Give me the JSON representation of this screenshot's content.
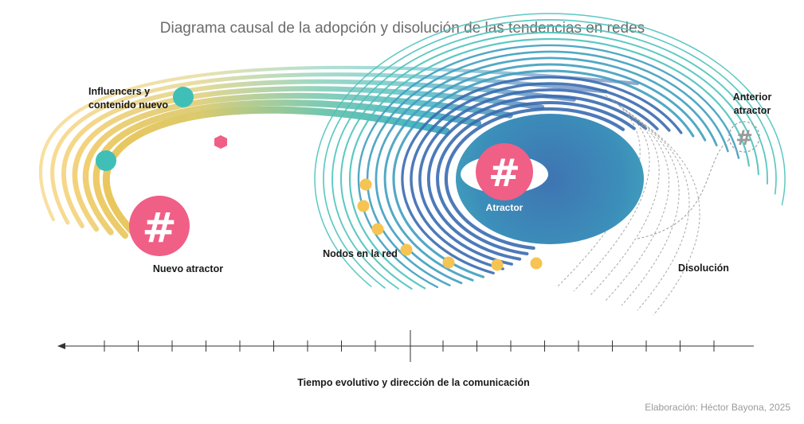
{
  "title": "Diagrama causal de la adopción y disolución de las tendencias en redes",
  "labels": {
    "influencers_line1": "Influencers y",
    "influencers_line2": "contenido nuevo",
    "nuevo_atractor": "Nuevo atractor",
    "atractor": "Atractor",
    "anterior_line1": "Anterior",
    "anterior_line2": "atractor",
    "nodos": "Nodos en la red",
    "disolucion": "Disolución",
    "hash_symbol": "#"
  },
  "axis_label": "Tiempo evolutivo y dirección de la comunicación",
  "credit": "Elaboración: Héctor Bayona, 2025",
  "colors": {
    "yellow": "#f2c14e",
    "teal": "#3fbfb8",
    "blue": "#3a63a8",
    "pink": "#ef5f86",
    "node": "#f6c452",
    "axis": "#333333",
    "dashed": "#9a9a9a"
  },
  "icons": {
    "arrow": "arrow-left-icon",
    "hash": "hashtag-icon"
  }
}
